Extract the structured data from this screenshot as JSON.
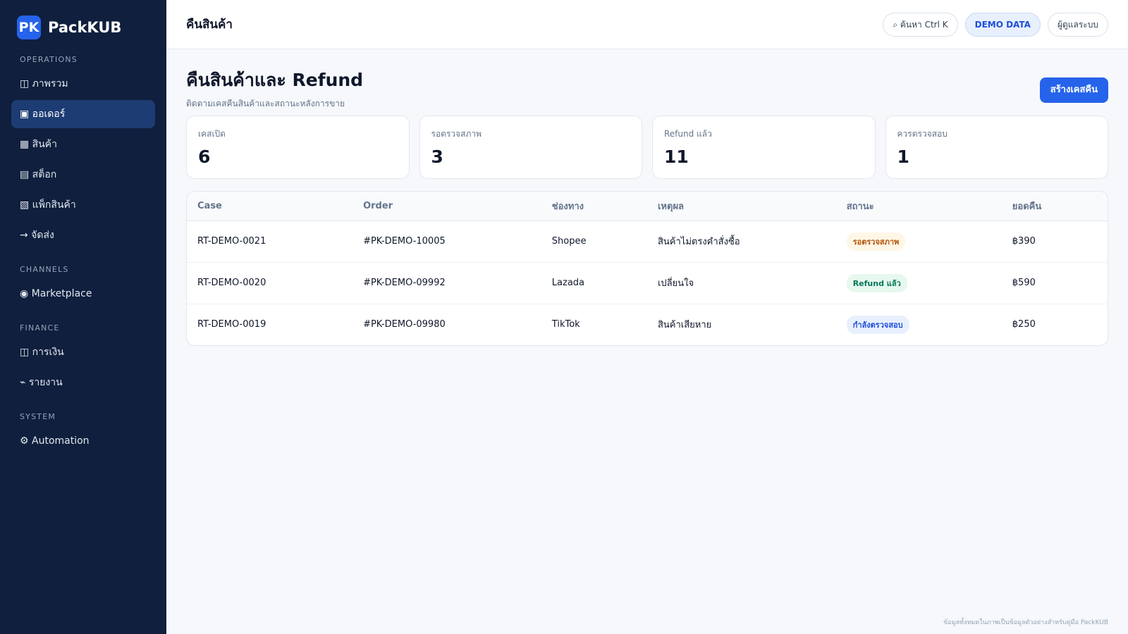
{
  "sidebar": {
    "logo_mark": "PK",
    "logo_text": "PackKUB",
    "sections": [
      {
        "title": "OPERATIONS",
        "items": [
          "◫ ภาพรวม",
          "▣ ออเดอร์",
          "▦ สินค้า",
          "▤ สต็อก",
          "▧ แพ็กสินค้า",
          "→ จัดส่ง"
        ]
      },
      {
        "title": "CHANNELS",
        "items": [
          "◉ Marketplace"
        ]
      },
      {
        "title": "FINANCE",
        "items": [
          "◫ การเงิน",
          "⌁ รายงาน"
        ]
      },
      {
        "title": "SYSTEM",
        "items": [
          "⚙ Automation"
        ]
      }
    ]
  },
  "topbar": {
    "title": "คืนสินค้า",
    "search": "⌕ ค้นหา Ctrl K",
    "demo": "DEMO DATA",
    "user": "ผู้ดูแลระบบ"
  },
  "header": {
    "title": "คืนสินค้าและ Refund",
    "subtitle": "ติดตามเคสคืนสินค้าและสถานะหลังการขาย",
    "button": "สร้างเคสคืน"
  },
  "stats": [
    {
      "label": "เคสเปิด",
      "value": 6
    },
    {
      "label": "รอตรวจสภาพ",
      "value": 3
    },
    {
      "label": "Refund แล้ว",
      "value": 11
    },
    {
      "label": "ควรตรวจสอบ",
      "value": 1
    }
  ],
  "table": {
    "headers": [
      "Case",
      "Order",
      "ช่องทาง",
      "เหตุผล",
      "สถานะ",
      "ยอดคืน"
    ],
    "rows": [
      [
        "RT-DEMO-0021",
        "#PK-DEMO-10005",
        "Shopee",
        "สินค้าไม่ตรงคำสั่งซื้อ",
        "รอตรวจสภาพ",
        "฿390"
      ],
      [
        "RT-DEMO-0020",
        "#PK-DEMO-09992",
        "Lazada",
        "เปลี่ยนใจ",
        "Refund แล้ว",
        "฿590"
      ],
      [
        "RT-DEMO-0019",
        "#PK-DEMO-09980",
        "TikTok",
        "สินค้าเสียหาย",
        "กำลังตรวจสอบ",
        "฿250"
      ]
    ]
  },
  "footer": "ข้อมูลทั้งหมดในภาพเป็นข้อมูลตัวอย่างสำหรับคู่มือ PackKUB"
}
